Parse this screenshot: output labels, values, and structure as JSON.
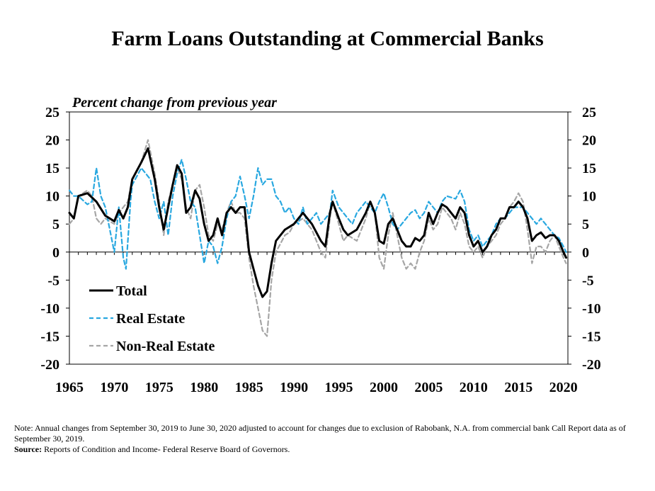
{
  "chart_data": {
    "type": "line",
    "title": "Farm Loans Outstanding at Commercial Banks",
    "subtitle": "Percent change from previous year",
    "xlabel": "",
    "ylabel": "",
    "xlim": [
      1965,
      2020.5
    ],
    "ylim": [
      -20,
      25
    ],
    "x_ticks": [
      1965,
      1970,
      1975,
      1980,
      1985,
      1990,
      1995,
      2000,
      2005,
      2010,
      2015,
      2020
    ],
    "y_ticks": [
      -20,
      -15,
      -10,
      -5,
      0,
      5,
      10,
      15,
      20,
      25
    ],
    "grid": false,
    "legend_position": "lower-left",
    "series": [
      {
        "name": "Total",
        "color": "#000000",
        "dash": "solid",
        "points": [
          [
            1965,
            7
          ],
          [
            1965.5,
            6
          ],
          [
            1966,
            10
          ],
          [
            1967,
            10.5
          ],
          [
            1968,
            9
          ],
          [
            1969,
            6.5
          ],
          [
            1970,
            5.5
          ],
          [
            1970.5,
            7.5
          ],
          [
            1971,
            6
          ],
          [
            1971.5,
            8
          ],
          [
            1972,
            13
          ],
          [
            1973,
            16
          ],
          [
            1973.75,
            18.5
          ],
          [
            1974.5,
            13
          ],
          [
            1975,
            8
          ],
          [
            1975.5,
            4
          ],
          [
            1976,
            8
          ],
          [
            1976.5,
            12
          ],
          [
            1977,
            15.5
          ],
          [
            1977.5,
            14
          ],
          [
            1978,
            7
          ],
          [
            1978.5,
            8
          ],
          [
            1979,
            11
          ],
          [
            1979.5,
            9.5
          ],
          [
            1980,
            5
          ],
          [
            1980.5,
            2
          ],
          [
            1981,
            3
          ],
          [
            1981.5,
            6
          ],
          [
            1982,
            3
          ],
          [
            1982.5,
            7
          ],
          [
            1983,
            8
          ],
          [
            1983.5,
            7
          ],
          [
            1984,
            8
          ],
          [
            1984.5,
            8
          ],
          [
            1985,
            0
          ],
          [
            1985.5,
            -3
          ],
          [
            1986,
            -6
          ],
          [
            1986.5,
            -8
          ],
          [
            1987,
            -7
          ],
          [
            1987.5,
            -2
          ],
          [
            1988,
            2
          ],
          [
            1989,
            4
          ],
          [
            1989.5,
            4.5
          ],
          [
            1990,
            5
          ],
          [
            1991,
            7
          ],
          [
            1991.5,
            6
          ],
          [
            1992,
            5
          ],
          [
            1993,
            2
          ],
          [
            1993.5,
            1
          ],
          [
            1994,
            7
          ],
          [
            1994.3,
            9
          ],
          [
            1995,
            6
          ],
          [
            1995.5,
            4
          ],
          [
            1996,
            3
          ],
          [
            1997,
            4
          ],
          [
            1998,
            7
          ],
          [
            1998.5,
            9
          ],
          [
            1999,
            7
          ],
          [
            1999.5,
            2
          ],
          [
            2000,
            1.5
          ],
          [
            2000.5,
            5
          ],
          [
            2001,
            6
          ],
          [
            2002,
            2
          ],
          [
            2002.5,
            1
          ],
          [
            2003,
            1
          ],
          [
            2003.5,
            2.5
          ],
          [
            2004,
            2
          ],
          [
            2004.5,
            3
          ],
          [
            2005,
            7
          ],
          [
            2005.5,
            5
          ],
          [
            2006,
            7
          ],
          [
            2006.5,
            8.5
          ],
          [
            2007,
            8
          ],
          [
            2007.5,
            7
          ],
          [
            2008,
            6
          ],
          [
            2008.5,
            8
          ],
          [
            2009,
            7
          ],
          [
            2009.5,
            3
          ],
          [
            2010,
            1
          ],
          [
            2010.5,
            2
          ],
          [
            2011,
            0
          ],
          [
            2011.5,
            1
          ],
          [
            2012,
            3
          ],
          [
            2012.5,
            4
          ],
          [
            2013,
            6
          ],
          [
            2013.5,
            6
          ],
          [
            2014,
            8
          ],
          [
            2014.5,
            8
          ],
          [
            2015,
            9
          ],
          [
            2015.5,
            8
          ],
          [
            2016,
            6
          ],
          [
            2016.5,
            2
          ],
          [
            2017,
            3
          ],
          [
            2017.5,
            3.5
          ],
          [
            2018,
            2.5
          ],
          [
            2018.5,
            3
          ],
          [
            2019,
            3
          ],
          [
            2019.5,
            2
          ],
          [
            2020,
            0
          ],
          [
            2020.3,
            -1
          ]
        ]
      },
      {
        "name": "Real Estate",
        "color": "#29A8E0",
        "dash": "dashed",
        "points": [
          [
            1965,
            11
          ],
          [
            1965.5,
            10
          ],
          [
            1966,
            10
          ],
          [
            1967,
            8.5
          ],
          [
            1967.5,
            9
          ],
          [
            1968,
            15
          ],
          [
            1968.5,
            10
          ],
          [
            1969,
            8
          ],
          [
            1969.5,
            4
          ],
          [
            1970,
            0
          ],
          [
            1970.5,
            8
          ],
          [
            1971,
            -1
          ],
          [
            1971.3,
            -3
          ],
          [
            1971.8,
            9
          ],
          [
            1972,
            12
          ],
          [
            1973,
            15
          ],
          [
            1974,
            13
          ],
          [
            1974.5,
            9
          ],
          [
            1975,
            6
          ],
          [
            1975.5,
            9
          ],
          [
            1976,
            3
          ],
          [
            1976.5,
            10
          ],
          [
            1977,
            14
          ],
          [
            1977.5,
            16.5
          ],
          [
            1978,
            13
          ],
          [
            1978.5,
            9
          ],
          [
            1979,
            8
          ],
          [
            1979.5,
            3
          ],
          [
            1980,
            -2
          ],
          [
            1980.5,
            2
          ],
          [
            1981,
            1
          ],
          [
            1981.5,
            -2
          ],
          [
            1982,
            1
          ],
          [
            1982.5,
            6
          ],
          [
            1983,
            9
          ],
          [
            1983.5,
            10
          ],
          [
            1984,
            13.5
          ],
          [
            1984.5,
            10
          ],
          [
            1985,
            6
          ],
          [
            1985.5,
            10
          ],
          [
            1986,
            15
          ],
          [
            1986.5,
            12
          ],
          [
            1987,
            13
          ],
          [
            1987.5,
            13
          ],
          [
            1988,
            10
          ],
          [
            1988.5,
            9
          ],
          [
            1989,
            7
          ],
          [
            1989.5,
            8
          ],
          [
            1990,
            6
          ],
          [
            1990.5,
            5
          ],
          [
            1991,
            8
          ],
          [
            1991.5,
            5
          ],
          [
            1992,
            6
          ],
          [
            1992.5,
            7
          ],
          [
            1993,
            5
          ],
          [
            1994,
            7
          ],
          [
            1994.3,
            11
          ],
          [
            1995,
            8
          ],
          [
            1995.5,
            7
          ],
          [
            1996,
            6
          ],
          [
            1996.5,
            5
          ],
          [
            1997,
            7
          ],
          [
            1997.5,
            8
          ],
          [
            1998,
            9
          ],
          [
            1998.5,
            8
          ],
          [
            1999,
            7
          ],
          [
            1999.5,
            9
          ],
          [
            2000,
            10.5
          ],
          [
            2000.5,
            8
          ],
          [
            2001,
            5
          ],
          [
            2001.5,
            4
          ],
          [
            2002,
            5
          ],
          [
            2003,
            7
          ],
          [
            2003.5,
            7.5
          ],
          [
            2004,
            6
          ],
          [
            2004.5,
            7
          ],
          [
            2005,
            9
          ],
          [
            2005.5,
            8
          ],
          [
            2006,
            7
          ],
          [
            2006.5,
            9
          ],
          [
            2007,
            10
          ],
          [
            2008,
            9.5
          ],
          [
            2008.5,
            11
          ],
          [
            2009,
            9
          ],
          [
            2009.5,
            4
          ],
          [
            2010,
            2
          ],
          [
            2010.5,
            3
          ],
          [
            2011,
            1
          ],
          [
            2011.5,
            2
          ],
          [
            2012,
            3
          ],
          [
            2012.5,
            5
          ],
          [
            2013,
            6
          ],
          [
            2013.5,
            6
          ],
          [
            2014,
            7
          ],
          [
            2014.5,
            8
          ],
          [
            2015,
            8
          ],
          [
            2015.5,
            8
          ],
          [
            2016,
            7
          ],
          [
            2016.5,
            6
          ],
          [
            2017,
            5
          ],
          [
            2017.5,
            6
          ],
          [
            2018,
            5
          ],
          [
            2018.5,
            4
          ],
          [
            2019,
            3
          ],
          [
            2019.5,
            2.5
          ],
          [
            2020,
            1
          ],
          [
            2020.3,
            0
          ]
        ]
      },
      {
        "name": "Non-Real Estate",
        "color": "#A6A6A6",
        "dash": "dashed",
        "points": [
          [
            1965,
            5
          ],
          [
            1965.5,
            6
          ],
          [
            1966,
            10
          ],
          [
            1967,
            11
          ],
          [
            1967.5,
            10
          ],
          [
            1968,
            6
          ],
          [
            1968.5,
            5
          ],
          [
            1969,
            6
          ],
          [
            1969.5,
            5.5
          ],
          [
            1970,
            5
          ],
          [
            1970.5,
            7
          ],
          [
            1971,
            8
          ],
          [
            1971.5,
            9
          ],
          [
            1972,
            13
          ],
          [
            1973,
            16
          ],
          [
            1973.75,
            20
          ],
          [
            1974.5,
            14
          ],
          [
            1975,
            9
          ],
          [
            1975.5,
            3
          ],
          [
            1976,
            9
          ],
          [
            1976.5,
            12
          ],
          [
            1977,
            15
          ],
          [
            1977.5,
            13
          ],
          [
            1978,
            8
          ],
          [
            1978.5,
            6
          ],
          [
            1979,
            11
          ],
          [
            1979.5,
            12
          ],
          [
            1980,
            8
          ],
          [
            1980.5,
            3
          ],
          [
            1981,
            2
          ],
          [
            1981.5,
            5
          ],
          [
            1982,
            4
          ],
          [
            1982.5,
            7
          ],
          [
            1983,
            9
          ],
          [
            1983.5,
            7
          ],
          [
            1984,
            7
          ],
          [
            1984.5,
            6
          ],
          [
            1985,
            -1
          ],
          [
            1985.5,
            -6
          ],
          [
            1986,
            -10
          ],
          [
            1986.5,
            -14
          ],
          [
            1987,
            -15
          ],
          [
            1987.5,
            -5
          ],
          [
            1988,
            0
          ],
          [
            1989,
            3
          ],
          [
            1989.5,
            3.5
          ],
          [
            1990,
            5
          ],
          [
            1991,
            6
          ],
          [
            1991.5,
            5
          ],
          [
            1992,
            4
          ],
          [
            1993,
            0
          ],
          [
            1993.5,
            -1
          ],
          [
            1994,
            6
          ],
          [
            1994.3,
            9
          ],
          [
            1995,
            5
          ],
          [
            1995.5,
            2
          ],
          [
            1996,
            3
          ],
          [
            1997,
            2
          ],
          [
            1998,
            6
          ],
          [
            1998.5,
            9
          ],
          [
            1999,
            7
          ],
          [
            1999.5,
            -1
          ],
          [
            2000,
            -3
          ],
          [
            2000.5,
            3
          ],
          [
            2001,
            7
          ],
          [
            2002,
            -1
          ],
          [
            2002.5,
            -3
          ],
          [
            2003,
            -2
          ],
          [
            2003.5,
            -3
          ],
          [
            2004,
            0
          ],
          [
            2004.5,
            2
          ],
          [
            2005,
            6
          ],
          [
            2005.5,
            4
          ],
          [
            2006,
            5
          ],
          [
            2006.5,
            8
          ],
          [
            2007,
            7
          ],
          [
            2007.5,
            6
          ],
          [
            2008,
            4
          ],
          [
            2008.5,
            7
          ],
          [
            2009,
            5
          ],
          [
            2009.5,
            1
          ],
          [
            2010,
            0
          ],
          [
            2010.5,
            1
          ],
          [
            2011,
            -1
          ],
          [
            2011.5,
            1
          ],
          [
            2012,
            2
          ],
          [
            2012.5,
            3
          ],
          [
            2013,
            5
          ],
          [
            2013.5,
            6
          ],
          [
            2014,
            8
          ],
          [
            2014.5,
            9
          ],
          [
            2015,
            10.5
          ],
          [
            2015.5,
            9
          ],
          [
            2016,
            4
          ],
          [
            2016.5,
            -2
          ],
          [
            2017,
            1
          ],
          [
            2017.5,
            1
          ],
          [
            2018,
            0
          ],
          [
            2018.5,
            2
          ],
          [
            2019,
            3
          ],
          [
            2019.5,
            1
          ],
          [
            2020,
            -1
          ],
          [
            2020.3,
            -2
          ]
        ]
      }
    ]
  },
  "notes": {
    "note": "Note: Annual changes from September 30, 2019 to June 30, 2020 adjusted to account for changes due to exclusion of Rabobank, N.A. from commercial bank Call Report data as of September 30, 2019.",
    "source_label": "Source:",
    "source_text": " Reports of Condition and Income- Federal Reserve Board of Governors."
  }
}
